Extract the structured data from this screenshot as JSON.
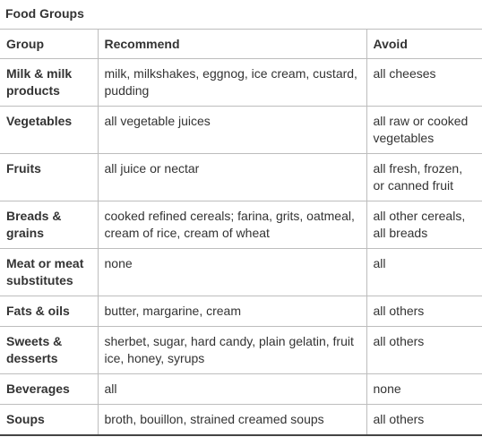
{
  "caption": "Food Groups",
  "headers": [
    "Group",
    "Recommend",
    "Avoid"
  ],
  "rows": [
    {
      "group": "Milk & milk products",
      "recommend": "milk, milkshakes, eggnog, ice cream, custard, pudding",
      "avoid": "all cheeses"
    },
    {
      "group": "Vegetables",
      "recommend": "all vegetable juices",
      "avoid": "all raw or cooked vegetables"
    },
    {
      "group": "Fruits",
      "recommend": "all juice or nectar",
      "avoid": "all fresh, frozen, or canned fruit"
    },
    {
      "group": "Breads & grains",
      "recommend": "cooked refined cereals; farina, grits, oatmeal, cream of rice, cream of wheat",
      "avoid": "all other cereals, all breads"
    },
    {
      "group": "Meat or meat substitutes",
      "recommend": "none",
      "avoid": "all"
    },
    {
      "group": "Fats & oils",
      "recommend": "butter, margarine, cream",
      "avoid": "all others"
    },
    {
      "group": "Sweets & desserts",
      "recommend": "sherbet, sugar, hard candy, plain gelatin, fruit ice, honey, syrups",
      "avoid": "all others"
    },
    {
      "group": "Beverages",
      "recommend": "all",
      "avoid": "none"
    },
    {
      "group": "Soups",
      "recommend": "broth, bouillon, strained creamed soups",
      "avoid": "all others"
    }
  ]
}
